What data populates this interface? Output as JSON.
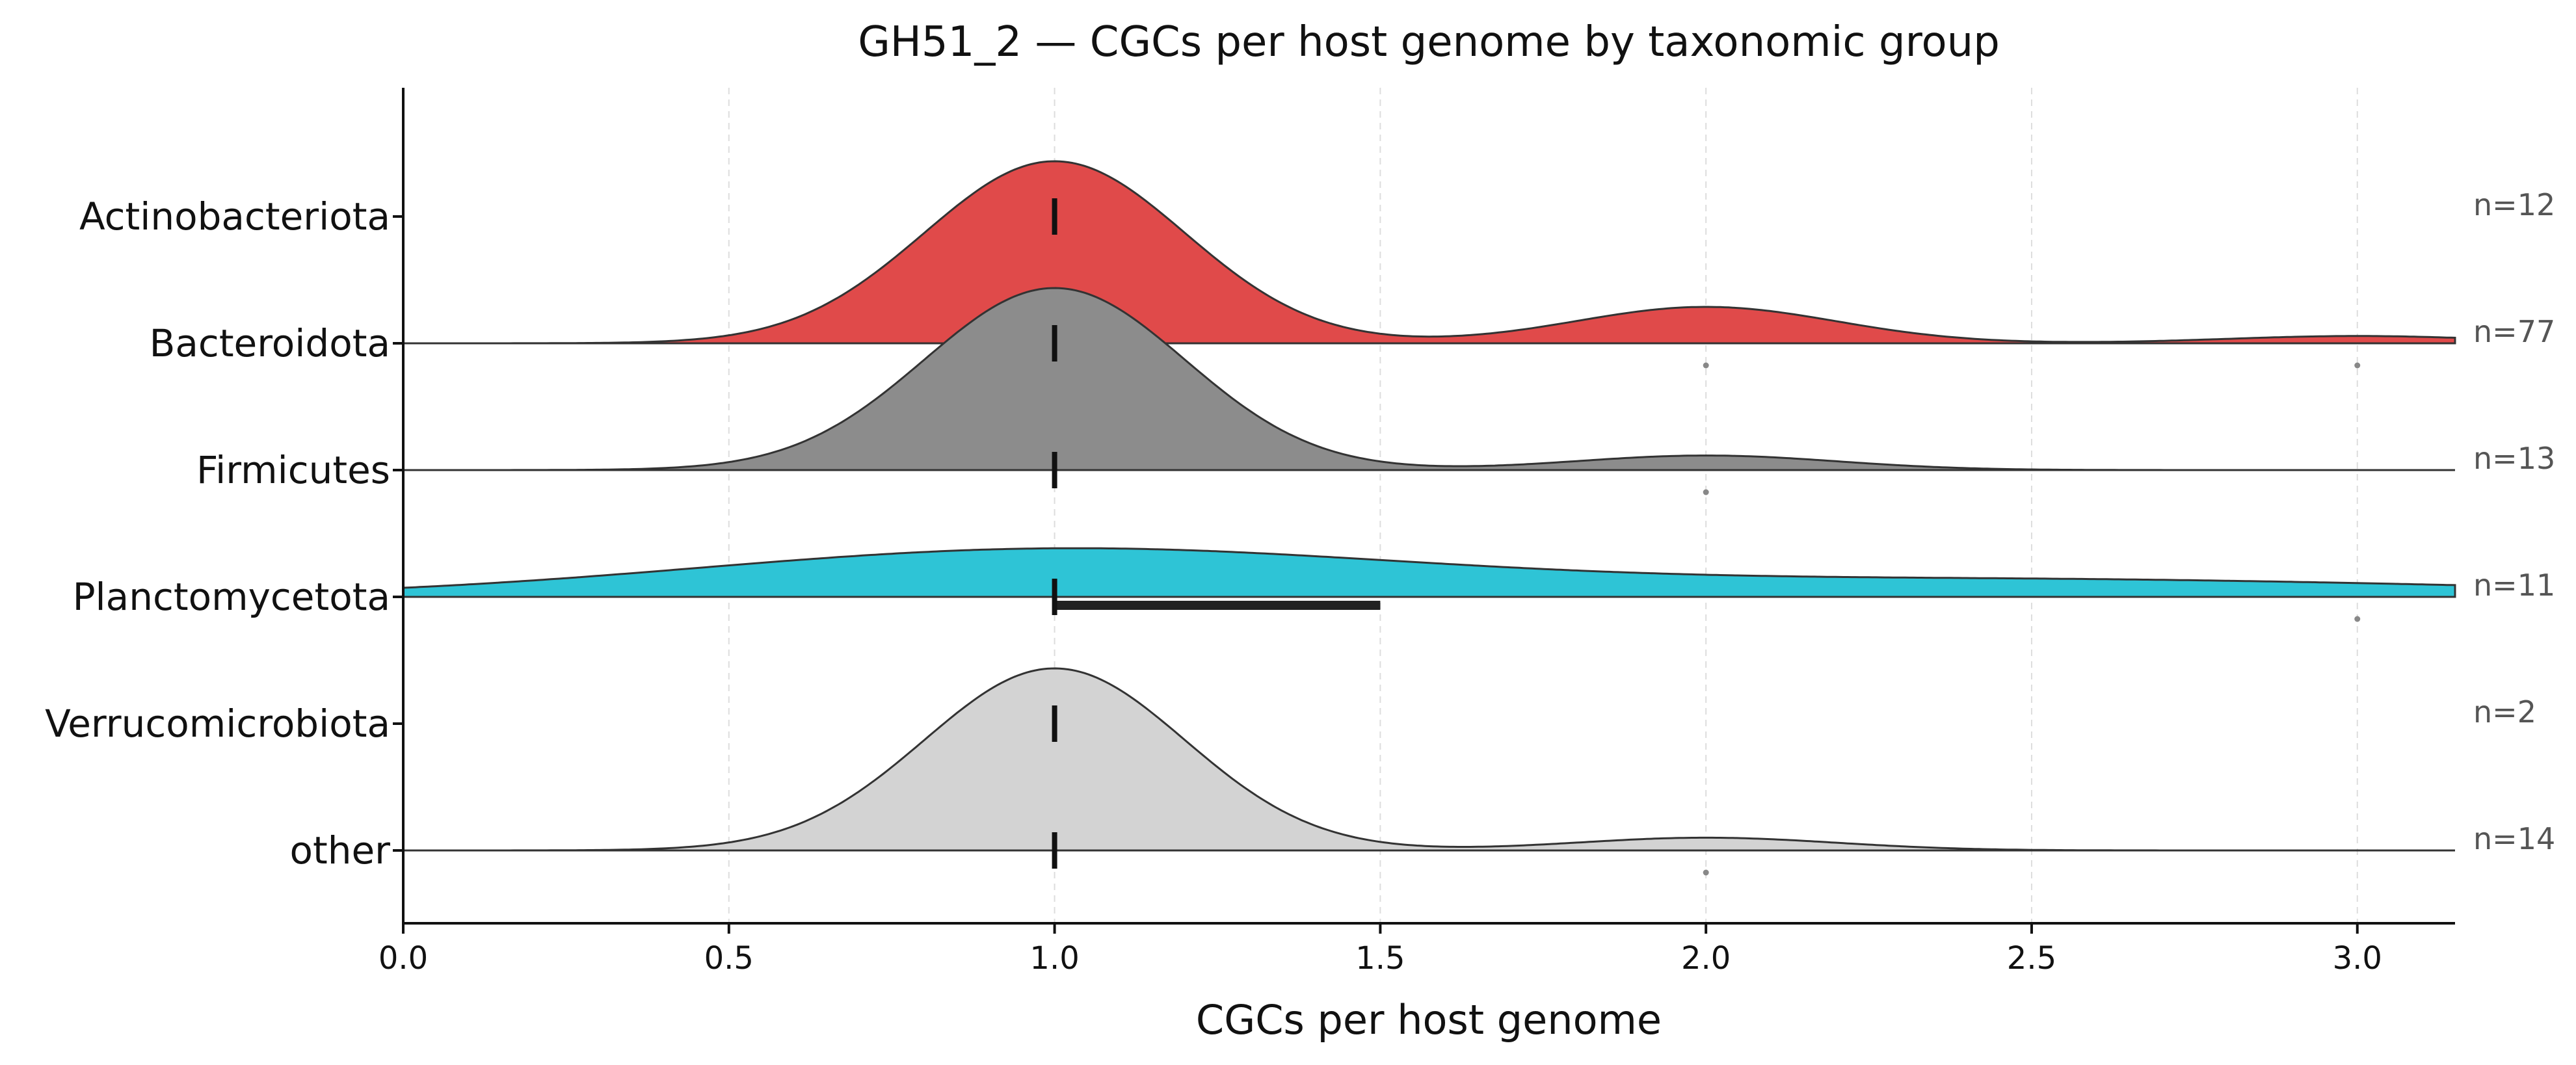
{
  "chart_data": {
    "type": "ridgeline",
    "title": "GH51_2 — CGCs per host genome by taxonomic group",
    "xlabel": "CGCs per host genome",
    "ylabel": "",
    "xlim": [
      0,
      3.15
    ],
    "xticks": [
      0.0,
      0.5,
      1.0,
      1.5,
      2.0,
      2.5,
      3.0
    ],
    "xtick_labels": [
      "0.0",
      "0.5",
      "1.0",
      "1.5",
      "2.0",
      "2.5",
      "3.0"
    ],
    "grid": "vertical dashed",
    "series": [
      {
        "name": "Actinobacteriota",
        "n_label": "n=12",
        "color": "",
        "median": 1.0,
        "iqr": [
          1.0,
          1.0
        ],
        "density": [],
        "outliers": []
      },
      {
        "name": "Bacteroidota",
        "n_label": "n=77",
        "color": "#e04a4a",
        "median": 1.0,
        "iqr": [
          1.0,
          1.0
        ],
        "density": [
          {
            "center": 1.0,
            "width": 0.2,
            "height": 1.0
          },
          {
            "center": 2.0,
            "width": 0.2,
            "height": 0.2
          },
          {
            "center": 3.0,
            "width": 0.2,
            "height": 0.04
          }
        ],
        "outliers": [
          2.0,
          3.0
        ]
      },
      {
        "name": "Firmicutes",
        "n_label": "n=13",
        "color": "#8c8c8c",
        "median": 1.0,
        "iqr": [
          1.0,
          1.0
        ],
        "density": [
          {
            "center": 1.0,
            "width": 0.2,
            "height": 1.0
          },
          {
            "center": 2.0,
            "width": 0.2,
            "height": 0.08
          }
        ],
        "outliers": [
          2.0
        ]
      },
      {
        "name": "Planctomycetota",
        "n_label": "n=11",
        "color": "#2ec4d6",
        "median": 1.0,
        "iqr": [
          1.0,
          1.5
        ],
        "density": [
          {
            "center": 1.0,
            "width": 0.55,
            "height": 0.26
          },
          {
            "center": 2.3,
            "width": 0.6,
            "height": 0.07
          },
          {
            "center": 3.0,
            "width": 0.6,
            "height": 0.04
          }
        ],
        "outliers": [
          3.0
        ]
      },
      {
        "name": "Verrucomicrobiota",
        "n_label": "n=2",
        "color": "",
        "median": 1.0,
        "iqr": [
          1.0,
          1.0
        ],
        "density": [],
        "outliers": []
      },
      {
        "name": "other",
        "n_label": "n=14",
        "color": "#d3d3d3",
        "median": 1.0,
        "iqr": [
          1.0,
          1.0
        ],
        "density": [
          {
            "center": 1.0,
            "width": 0.2,
            "height": 1.0
          },
          {
            "center": 2.0,
            "width": 0.2,
            "height": 0.07
          }
        ],
        "outliers": [
          2.0
        ]
      }
    ]
  }
}
